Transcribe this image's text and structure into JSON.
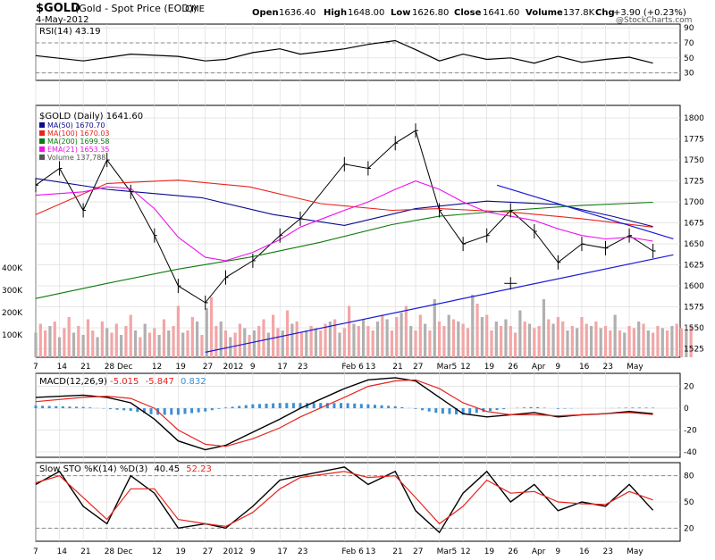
{
  "header": {
    "symbol": "$GOLD",
    "name": "(Gold - Spot Price (EOD))",
    "exchange": "CME",
    "date": "4-May-2012",
    "open_label": "Open",
    "open": "1636.40",
    "high_label": "High",
    "high": "1648.00",
    "low_label": "Low",
    "low": "1626.80",
    "close_label": "Close",
    "close": "1641.60",
    "volume_label": "Volume",
    "volume": "137.8K",
    "chg_label": "Chg",
    "chg": "+3.90 (+0.23%)",
    "source": "@StockCharts.com"
  },
  "colors": {
    "price": "#000000",
    "ma50": "#0a0a8c",
    "ma100": "#e8231d",
    "ma200": "#0d7a0d",
    "ema21": "#ee11ee",
    "vol_up": "#b0b0b0",
    "vol_down": "#f2a6a6",
    "trend": "#1a1ad6",
    "macd": "#000000",
    "signal": "#e8231d",
    "hist": "#3b8fd6",
    "grid": "#d8d8d8"
  },
  "x_axis": {
    "labels": [
      "7",
      "14",
      "21",
      "28 Dec",
      "12",
      "19",
      "27",
      "2012",
      "9",
      "17",
      "23",
      "Feb 6",
      "13",
      "21",
      "27",
      "Mar5",
      "12",
      "19",
      "26",
      "Apr",
      "9",
      "16",
      "23",
      "May"
    ],
    "label_days": [
      0,
      7,
      14,
      21,
      35,
      42,
      50,
      56,
      64,
      72,
      78,
      91,
      98,
      106,
      112,
      119,
      126,
      133,
      140,
      147,
      154,
      161,
      168,
      175
    ]
  },
  "chart_data": [
    {
      "type": "line",
      "name": "rsi",
      "label": "RSI(14) 43.19",
      "ylim": [
        20,
        95
      ],
      "yticks": [
        30,
        50,
        70,
        90
      ],
      "series": [
        {
          "name": "RSI(14)",
          "x": [
            0,
            14,
            28,
            42,
            50,
            56,
            64,
            72,
            78,
            91,
            98,
            106,
            112,
            119,
            126,
            133,
            140,
            147,
            154,
            161,
            168,
            175,
            182
          ],
          "values": [
            53,
            46,
            55,
            52,
            46,
            48,
            57,
            62,
            55,
            62,
            68,
            73,
            61,
            46,
            55,
            48,
            50,
            43,
            52,
            44,
            48,
            51,
            43
          ]
        }
      ]
    },
    {
      "type": "candlestick",
      "name": "price",
      "label": "$GOLD (Daily) 1641.60",
      "ylim": [
        1515,
        1815
      ],
      "yticks": [
        1525,
        1550,
        1575,
        1600,
        1625,
        1650,
        1675,
        1700,
        1725,
        1750,
        1775,
        1800
      ],
      "legend": [
        {
          "key": "ma50",
          "text": "MA(50) 1670.70"
        },
        {
          "key": "ma100",
          "text": "MA(100) 1670.03"
        },
        {
          "key": "ma200",
          "text": "MA(200) 1699.58"
        },
        {
          "key": "ema21",
          "text": "EMA(21) 1653.35"
        },
        {
          "key": "vol",
          "text": "Volume 137,788"
        }
      ],
      "series": [
        {
          "name": "price",
          "x": [
            0,
            7,
            14,
            21,
            28,
            35,
            42,
            50,
            56,
            64,
            72,
            78,
            91,
            98,
            106,
            112,
            119,
            126,
            133,
            140,
            147,
            154,
            161,
            168,
            175,
            182
          ],
          "values": [
            1720,
            1740,
            1690,
            1750,
            1712,
            1660,
            1600,
            1580,
            1610,
            1630,
            1660,
            1680,
            1745,
            1740,
            1770,
            1785,
            1690,
            1650,
            1660,
            1690,
            1665,
            1628,
            1650,
            1645,
            1660,
            1641.6
          ]
        },
        {
          "name": "MA(50)",
          "x": [
            0,
            21,
            49,
            70,
            91,
            112,
            133,
            154,
            170,
            182
          ],
          "values": [
            1728,
            1715,
            1705,
            1685,
            1672,
            1692,
            1701,
            1697,
            1683,
            1670.7
          ]
        },
        {
          "name": "MA(100)",
          "x": [
            0,
            21,
            42,
            63,
            84,
            105,
            119,
            140,
            161,
            182
          ],
          "values": [
            1685,
            1722,
            1726,
            1718,
            1698,
            1690,
            1692,
            1688,
            1680,
            1670.03
          ]
        },
        {
          "name": "MA(200)",
          "x": [
            0,
            21,
            42,
            63,
            84,
            105,
            119,
            140,
            161,
            182
          ],
          "values": [
            1585,
            1603,
            1620,
            1634,
            1652,
            1673,
            1683,
            1690,
            1696,
            1699.58
          ]
        },
        {
          "name": "EMA(21)",
          "x": [
            0,
            14,
            21,
            28,
            35,
            42,
            50,
            56,
            64,
            72,
            78,
            91,
            98,
            106,
            112,
            119,
            126,
            133,
            140,
            147,
            154,
            161,
            168,
            175,
            182
          ],
          "values": [
            1708,
            1712,
            1718,
            1716,
            1692,
            1658,
            1634,
            1630,
            1640,
            1655,
            1670,
            1690,
            1700,
            1715,
            1725,
            1715,
            1700,
            1688,
            1683,
            1678,
            1668,
            1660,
            1656,
            1658,
            1653.35
          ]
        }
      ],
      "trendlines": [
        {
          "from": [
            50,
            1521
          ],
          "to": [
            188,
            1637
          ]
        },
        {
          "from": [
            136,
            1720
          ],
          "to": [
            188,
            1656
          ]
        }
      ],
      "marker": {
        "x": 140,
        "y": 1603
      }
    },
    {
      "type": "bar",
      "name": "volume",
      "yticks_label": [
        "100K",
        "200K",
        "300K",
        "400K"
      ],
      "ylim": [
        0,
        400
      ],
      "yticks": [
        100,
        200,
        300,
        400
      ],
      "x_start": 0,
      "x_step": 1.4,
      "values": [
        110,
        150,
        120,
        140,
        160,
        90,
        130,
        180,
        110,
        140,
        100,
        170,
        120,
        90,
        160,
        130,
        110,
        150,
        100,
        140,
        190,
        120,
        90,
        150,
        110,
        130,
        100,
        170,
        120,
        140,
        230,
        110,
        120,
        180,
        160,
        100,
        220,
        270,
        140,
        160,
        120,
        90,
        110,
        150,
        130,
        100,
        120,
        140,
        170,
        110,
        190,
        130,
        120,
        210,
        150,
        160,
        110,
        120,
        140,
        130,
        120,
        150,
        160,
        170,
        110,
        130,
        230,
        150,
        140,
        170,
        140,
        120,
        160,
        190,
        170,
        120,
        180,
        200,
        230,
        140,
        120,
        190,
        150,
        120,
        260,
        160,
        140,
        190,
        170,
        160,
        150,
        130,
        280,
        240,
        180,
        190,
        120,
        160,
        140,
        170,
        140,
        110,
        210,
        160,
        150,
        130,
        140,
        260,
        170,
        150,
        180,
        160,
        120,
        140,
        130,
        180,
        150,
        140,
        160,
        130,
        140,
        120,
        190,
        120,
        110,
        140,
        130,
        160,
        150,
        120,
        110,
        140,
        130,
        120,
        140,
        150,
        130,
        120,
        140
      ],
      "up_flags": [
        1,
        0,
        0,
        1,
        0,
        1,
        0,
        0,
        1,
        0,
        1,
        0,
        0,
        1,
        0,
        1,
        0,
        0,
        1,
        0,
        0,
        1,
        0,
        1,
        0,
        0,
        1,
        0,
        1,
        0,
        0,
        1,
        0,
        0,
        1,
        0,
        1,
        0,
        0,
        1,
        0,
        1,
        0,
        0,
        1,
        0,
        1,
        0,
        0,
        1,
        0,
        0,
        1,
        0,
        1,
        0,
        0,
        1,
        0,
        1,
        0,
        0,
        1,
        0,
        1,
        0,
        0,
        1,
        0,
        1,
        0,
        0,
        1,
        0,
        1,
        0,
        0,
        1,
        0,
        1,
        0,
        0,
        1,
        0,
        1,
        0,
        0,
        1,
        0,
        1,
        0,
        0,
        1,
        0,
        1,
        0,
        0,
        1,
        0,
        1,
        0,
        0,
        1,
        0,
        1,
        0,
        0,
        1,
        0,
        1,
        0,
        0,
        1,
        0,
        1,
        0,
        0,
        1,
        0,
        1,
        0,
        0,
        1,
        0,
        1,
        0,
        0,
        1,
        0,
        1,
        0,
        0,
        1,
        0,
        1,
        0,
        0,
        1,
        0
      ]
    },
    {
      "type": "line",
      "name": "macd",
      "label_prefix": "MACD(12,26,9)",
      "label_macd": "-5.015",
      "label_signal": "-5.847",
      "label_hist": "0.832",
      "ylim": [
        -45,
        32
      ],
      "yticks": [
        -40,
        -20,
        0,
        20
      ],
      "series": [
        {
          "name": "MACD",
          "x": [
            0,
            14,
            21,
            28,
            35,
            42,
            50,
            56,
            64,
            72,
            78,
            91,
            98,
            106,
            112,
            119,
            126,
            133,
            140,
            147,
            154,
            161,
            168,
            175,
            182
          ],
          "values": [
            10,
            12,
            10,
            5,
            -10,
            -30,
            -38,
            -34,
            -22,
            -10,
            0,
            18,
            26,
            28,
            25,
            10,
            -5,
            -8,
            -6,
            -4,
            -8,
            -6,
            -5,
            -3,
            -5.015
          ]
        },
        {
          "name": "Signal",
          "x": [
            0,
            14,
            21,
            28,
            35,
            42,
            50,
            56,
            64,
            72,
            78,
            91,
            98,
            106,
            112,
            119,
            126,
            133,
            140,
            147,
            154,
            161,
            168,
            175,
            182
          ],
          "values": [
            6,
            10,
            11,
            9,
            0,
            -20,
            -33,
            -35,
            -28,
            -18,
            -8,
            10,
            20,
            25,
            26,
            18,
            5,
            -3,
            -6,
            -6,
            -7,
            -6,
            -5,
            -4,
            -5.847
          ]
        }
      ]
    },
    {
      "type": "line",
      "name": "stochastic",
      "label_prefix": "Slow STO %K(14) %D(3)",
      "label_k": "40.45",
      "label_d": "52.23",
      "ylim": [
        5,
        95
      ],
      "yticks": [
        20,
        50,
        80
      ],
      "series": [
        {
          "name": "%K",
          "x": [
            0,
            7,
            14,
            21,
            28,
            35,
            42,
            50,
            56,
            64,
            72,
            78,
            91,
            98,
            106,
            112,
            119,
            126,
            133,
            140,
            147,
            154,
            161,
            168,
            175,
            182
          ],
          "values": [
            70,
            85,
            45,
            25,
            80,
            60,
            20,
            25,
            20,
            45,
            75,
            80,
            90,
            70,
            85,
            40,
            15,
            60,
            85,
            50,
            70,
            40,
            50,
            45,
            70,
            40.45
          ]
        },
        {
          "name": "%D",
          "x": [
            0,
            7,
            14,
            21,
            28,
            35,
            42,
            50,
            56,
            64,
            72,
            78,
            91,
            98,
            106,
            112,
            119,
            126,
            133,
            140,
            147,
            154,
            161,
            168,
            175,
            182
          ],
          "values": [
            72,
            80,
            55,
            30,
            65,
            65,
            30,
            25,
            22,
            38,
            65,
            78,
            85,
            78,
            80,
            55,
            25,
            45,
            75,
            60,
            62,
            50,
            48,
            47,
            62,
            52.23
          ]
        }
      ]
    }
  ]
}
